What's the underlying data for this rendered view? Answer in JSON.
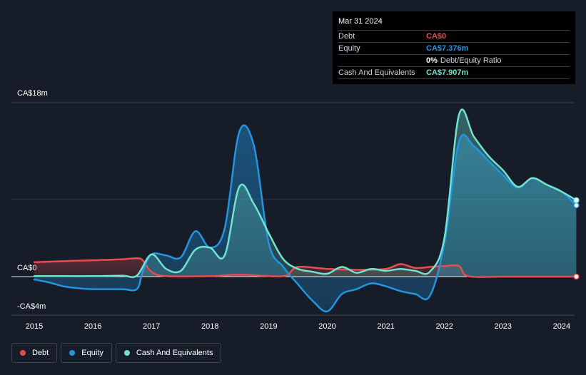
{
  "tooltip": {
    "date": "Mar 31 2024",
    "rows": [
      {
        "name": "Debt",
        "value": "CA$0",
        "color": "#e84d4d"
      },
      {
        "name": "Equity",
        "value": "CA$7.376m",
        "color": "#2394df"
      },
      {
        "name": "",
        "value": "0%",
        "note": "Debt/Equity Ratio",
        "color": "#ffffff"
      },
      {
        "name": "Cash And Equivalents",
        "value": "CA$7.907m",
        "color": "#6fe3cf"
      }
    ]
  },
  "legend": [
    {
      "label": "Debt",
      "color": "#e84d4d"
    },
    {
      "label": "Equity",
      "color": "#2394df"
    },
    {
      "label": "Cash And Equivalents",
      "color": "#6fe3cf"
    }
  ],
  "chart_data": {
    "type": "area",
    "y_axis_labels": [
      "CA$18m",
      "CA$0",
      "-CA$4m"
    ],
    "x_tick_labels": [
      "2015",
      "2016",
      "2017",
      "2018",
      "2019",
      "2020",
      "2021",
      "2022",
      "2023",
      "2024"
    ],
    "ylim": [
      -4,
      18
    ],
    "xlim": [
      2015.0,
      2024.25
    ],
    "grid": true,
    "legend_position": "bottom-left",
    "units": "CA$ millions",
    "series": [
      {
        "name": "Debt",
        "color": "#e84d4d",
        "points": [
          [
            2015.0,
            1.5
          ],
          [
            2015.5,
            1.6
          ],
          [
            2016.0,
            1.7
          ],
          [
            2016.5,
            1.8
          ],
          [
            2016.75,
            1.9
          ],
          [
            2016.85,
            1.7
          ],
          [
            2017.0,
            0.5
          ],
          [
            2017.25,
            0.05
          ],
          [
            2018.0,
            0.05
          ],
          [
            2018.5,
            0.2
          ],
          [
            2019.0,
            0.05
          ],
          [
            2019.3,
            0.1
          ],
          [
            2019.5,
            1.0
          ],
          [
            2020.0,
            0.8
          ],
          [
            2020.5,
            0.7
          ],
          [
            2021.0,
            0.8
          ],
          [
            2021.25,
            1.3
          ],
          [
            2021.5,
            0.9
          ],
          [
            2021.75,
            1.0
          ],
          [
            2022.0,
            1.1
          ],
          [
            2022.25,
            1.1
          ],
          [
            2022.4,
            0.05
          ],
          [
            2023.0,
            0.0
          ],
          [
            2023.5,
            0.0
          ],
          [
            2024.0,
            0.0
          ],
          [
            2024.25,
            0.0
          ]
        ]
      },
      {
        "name": "Equity",
        "color": "#2394df",
        "points": [
          [
            2015.0,
            -0.3
          ],
          [
            2015.25,
            -0.6
          ],
          [
            2015.5,
            -1.0
          ],
          [
            2015.75,
            -1.2
          ],
          [
            2016.0,
            -1.3
          ],
          [
            2016.5,
            -1.3
          ],
          [
            2016.75,
            -1.3
          ],
          [
            2016.85,
            0.5
          ],
          [
            2017.0,
            2.3
          ],
          [
            2017.25,
            2.2
          ],
          [
            2017.5,
            2.0
          ],
          [
            2017.75,
            4.7
          ],
          [
            2018.0,
            3.0
          ],
          [
            2018.25,
            5.0
          ],
          [
            2018.5,
            15.0
          ],
          [
            2018.75,
            13.5
          ],
          [
            2019.0,
            3.5
          ],
          [
            2019.25,
            1.0
          ],
          [
            2019.5,
            -0.8
          ],
          [
            2019.75,
            -2.5
          ],
          [
            2020.0,
            -3.6
          ],
          [
            2020.25,
            -1.8
          ],
          [
            2020.5,
            -1.3
          ],
          [
            2020.75,
            -0.7
          ],
          [
            2021.0,
            -1.0
          ],
          [
            2021.25,
            -1.5
          ],
          [
            2021.5,
            -1.8
          ],
          [
            2021.75,
            -2.0
          ],
          [
            2022.0,
            3.5
          ],
          [
            2022.25,
            14.0
          ],
          [
            2022.5,
            13.5
          ],
          [
            2022.75,
            12.0
          ],
          [
            2023.0,
            10.5
          ],
          [
            2023.25,
            9.2
          ],
          [
            2023.5,
            10.2
          ],
          [
            2023.75,
            9.5
          ],
          [
            2024.0,
            8.8
          ],
          [
            2024.25,
            7.376
          ]
        ]
      },
      {
        "name": "Cash And Equivalents",
        "color": "#6fe3cf",
        "points": [
          [
            2015.0,
            0.05
          ],
          [
            2015.5,
            0.05
          ],
          [
            2016.0,
            0.05
          ],
          [
            2016.5,
            0.1
          ],
          [
            2016.75,
            0.1
          ],
          [
            2017.0,
            2.3
          ],
          [
            2017.25,
            0.8
          ],
          [
            2017.5,
            0.6
          ],
          [
            2017.75,
            2.8
          ],
          [
            2018.0,
            3.0
          ],
          [
            2018.25,
            2.2
          ],
          [
            2018.5,
            9.3
          ],
          [
            2018.75,
            7.5
          ],
          [
            2019.0,
            4.5
          ],
          [
            2019.25,
            1.8
          ],
          [
            2019.5,
            0.8
          ],
          [
            2019.75,
            0.5
          ],
          [
            2020.0,
            0.3
          ],
          [
            2020.25,
            1.0
          ],
          [
            2020.5,
            0.4
          ],
          [
            2020.75,
            0.8
          ],
          [
            2021.0,
            0.6
          ],
          [
            2021.25,
            0.8
          ],
          [
            2021.5,
            0.6
          ],
          [
            2021.75,
            0.5
          ],
          [
            2022.0,
            4.0
          ],
          [
            2022.25,
            16.8
          ],
          [
            2022.5,
            14.5
          ],
          [
            2022.75,
            12.5
          ],
          [
            2023.0,
            11.0
          ],
          [
            2023.25,
            9.3
          ],
          [
            2023.5,
            10.2
          ],
          [
            2023.75,
            9.5
          ],
          [
            2024.0,
            8.8
          ],
          [
            2024.25,
            7.907
          ]
        ]
      }
    ]
  }
}
